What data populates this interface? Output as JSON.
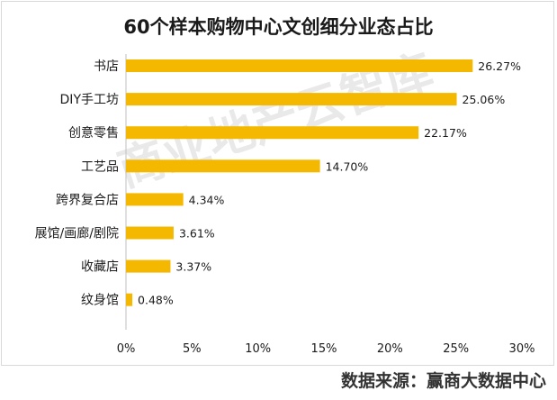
{
  "chart_data": {
    "type": "bar",
    "orientation": "horizontal",
    "title": "60个样本购物中心文创细分业态占比",
    "categories": [
      "书店",
      "DIY手工坊",
      "创意零售",
      "工艺品",
      "跨界复合店",
      "展馆/画廊/剧院",
      "收藏店",
      "纹身馆"
    ],
    "values": [
      26.27,
      25.06,
      22.17,
      14.7,
      4.34,
      3.61,
      3.37,
      0.48
    ],
    "value_labels": [
      "26.27%",
      "25.06%",
      "22.17%",
      "14.70%",
      "4.34%",
      "3.61%",
      "3.37%",
      "0.48%"
    ],
    "xlim": [
      0,
      30
    ],
    "x_ticks": [
      0,
      5,
      10,
      15,
      20,
      25,
      30
    ],
    "x_tick_labels": [
      "0%",
      "5%",
      "10%",
      "15%",
      "20%",
      "25%",
      "30%"
    ],
    "bar_color": "#f5b800",
    "grid": false,
    "legend": "none"
  },
  "source": "数据来源：赢商大数据中心",
  "watermark": "商业地产云智库"
}
